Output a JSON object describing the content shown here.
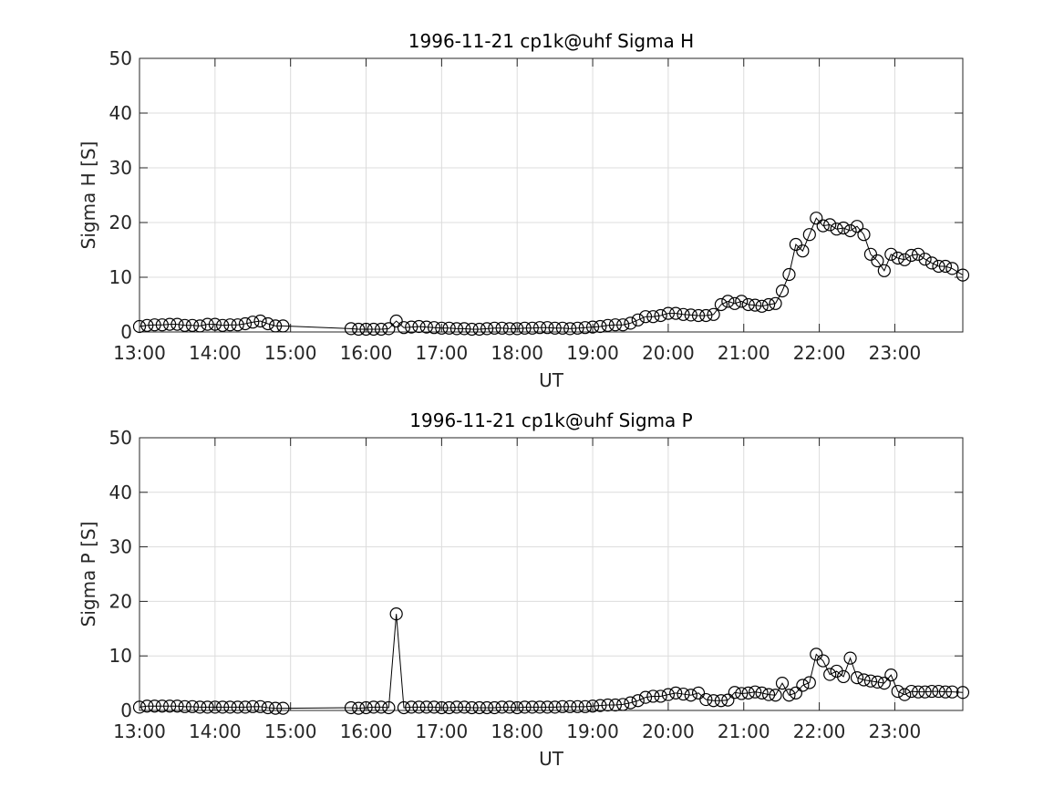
{
  "chart_data": [
    {
      "type": "line",
      "title": "1996-11-21  cp1k@uhf Sigma H",
      "xlabel": "UT",
      "ylabel": "Sigma H [S]",
      "color": "#000000",
      "grid": true,
      "marker": "circle",
      "x": [
        13.0,
        13.1,
        13.2,
        13.3,
        13.4,
        13.5,
        13.6,
        13.7,
        13.8,
        13.9,
        14.0,
        14.1,
        14.2,
        14.3,
        14.4,
        14.5,
        14.6,
        14.7,
        14.8,
        14.9,
        15.8,
        15.9,
        16.0,
        16.1,
        16.2,
        16.3,
        16.4,
        16.5,
        16.6,
        16.7,
        16.8,
        16.9,
        17.0,
        17.1,
        17.2,
        17.3,
        17.4,
        17.5,
        17.6,
        17.7,
        17.8,
        17.9,
        18.0,
        18.1,
        18.2,
        18.3,
        18.4,
        18.5,
        18.6,
        18.7,
        18.8,
        18.9,
        19.0,
        19.1,
        19.2,
        19.3,
        19.4,
        19.5,
        19.6,
        19.7,
        19.8,
        19.9,
        20.0,
        20.1,
        20.2,
        20.3,
        20.4,
        20.5,
        20.6,
        20.7,
        20.79,
        20.88,
        20.97,
        21.06,
        21.15,
        21.24,
        21.33,
        21.42,
        21.51,
        21.6,
        21.69,
        21.78,
        21.87,
        21.96,
        22.05,
        22.14,
        22.23,
        22.32,
        22.41,
        22.5,
        22.59,
        22.68,
        22.77,
        22.86,
        22.95,
        23.04,
        23.13,
        23.22,
        23.31,
        23.4,
        23.49,
        23.58,
        23.67,
        23.76,
        23.9
      ],
      "values": [
        1.0,
        1.2,
        1.3,
        1.3,
        1.4,
        1.4,
        1.2,
        1.2,
        1.1,
        1.4,
        1.4,
        1.2,
        1.3,
        1.3,
        1.5,
        1.8,
        2.0,
        1.5,
        1.1,
        1.1,
        0.6,
        0.5,
        0.5,
        0.5,
        0.5,
        0.6,
        2.0,
        0.8,
        0.9,
        1.0,
        0.9,
        0.8,
        0.7,
        0.7,
        0.6,
        0.6,
        0.5,
        0.5,
        0.6,
        0.7,
        0.7,
        0.6,
        0.6,
        0.7,
        0.7,
        0.8,
        0.8,
        0.7,
        0.7,
        0.6,
        0.7,
        0.8,
        0.9,
        1.0,
        1.2,
        1.3,
        1.3,
        1.6,
        2.2,
        2.8,
        2.8,
        3.0,
        3.4,
        3.4,
        3.2,
        3.1,
        3.0,
        3.0,
        3.2,
        5.0,
        5.6,
        5.2,
        5.6,
        5.0,
        4.9,
        4.7,
        5.0,
        5.2,
        7.5,
        10.5,
        16.0,
        14.8,
        17.8,
        20.8,
        19.4,
        19.6,
        18.8,
        19.0,
        18.5,
        19.3,
        17.8,
        14.2,
        13.0,
        11.2,
        14.2,
        13.5,
        13.2,
        14.0,
        14.2,
        13.3,
        12.6,
        12.0,
        12.0,
        11.6,
        10.4
      ],
      "xlim": [
        13,
        23.9
      ],
      "xticks": [
        {
          "value": 13,
          "label": "13:00"
        },
        {
          "value": 14,
          "label": "14:00"
        },
        {
          "value": 15,
          "label": "15:00"
        },
        {
          "value": 16,
          "label": "16:00"
        },
        {
          "value": 17,
          "label": "17:00"
        },
        {
          "value": 18,
          "label": "18:00"
        },
        {
          "value": 19,
          "label": "19:00"
        },
        {
          "value": 20,
          "label": "20:00"
        },
        {
          "value": 21,
          "label": "21:00"
        },
        {
          "value": 22,
          "label": "22:00"
        },
        {
          "value": 23,
          "label": "23:00"
        }
      ],
      "ylim": [
        0,
        50
      ],
      "yticks": [
        0,
        10,
        20,
        30,
        40,
        50
      ]
    },
    {
      "type": "line",
      "title": "1996-11-21  cp1k@uhf Sigma P",
      "xlabel": "UT",
      "ylabel": "Sigma P [S]",
      "color": "#000000",
      "grid": true,
      "marker": "circle",
      "x": [
        13.0,
        13.1,
        13.2,
        13.3,
        13.4,
        13.5,
        13.6,
        13.7,
        13.8,
        13.9,
        14.0,
        14.1,
        14.2,
        14.3,
        14.4,
        14.5,
        14.6,
        14.7,
        14.8,
        14.9,
        15.8,
        15.9,
        16.0,
        16.1,
        16.2,
        16.3,
        16.4,
        16.5,
        16.6,
        16.7,
        16.8,
        16.9,
        17.0,
        17.1,
        17.2,
        17.3,
        17.4,
        17.5,
        17.6,
        17.7,
        17.8,
        17.9,
        18.0,
        18.1,
        18.2,
        18.3,
        18.4,
        18.5,
        18.6,
        18.7,
        18.8,
        18.9,
        19.0,
        19.1,
        19.2,
        19.3,
        19.4,
        19.5,
        19.6,
        19.7,
        19.8,
        19.9,
        20.0,
        20.1,
        20.2,
        20.3,
        20.4,
        20.5,
        20.6,
        20.7,
        20.79,
        20.88,
        20.97,
        21.06,
        21.15,
        21.24,
        21.33,
        21.42,
        21.51,
        21.6,
        21.69,
        21.78,
        21.87,
        21.96,
        22.05,
        22.14,
        22.23,
        22.32,
        22.41,
        22.5,
        22.59,
        22.68,
        22.77,
        22.86,
        22.95,
        23.04,
        23.13,
        23.22,
        23.31,
        23.4,
        23.49,
        23.58,
        23.67,
        23.76,
        23.9
      ],
      "values": [
        0.6,
        0.8,
        0.8,
        0.8,
        0.8,
        0.8,
        0.7,
        0.7,
        0.6,
        0.6,
        0.6,
        0.6,
        0.6,
        0.6,
        0.6,
        0.7,
        0.7,
        0.5,
        0.4,
        0.4,
        0.5,
        0.4,
        0.5,
        0.6,
        0.6,
        0.5,
        17.7,
        0.5,
        0.6,
        0.6,
        0.6,
        0.6,
        0.5,
        0.5,
        0.6,
        0.6,
        0.5,
        0.5,
        0.5,
        0.5,
        0.6,
        0.6,
        0.5,
        0.6,
        0.6,
        0.6,
        0.6,
        0.6,
        0.7,
        0.7,
        0.7,
        0.7,
        0.8,
        0.9,
        1.0,
        1.0,
        1.1,
        1.4,
        1.8,
        2.4,
        2.6,
        2.6,
        2.9,
        3.2,
        3.0,
        2.8,
        3.2,
        2.0,
        1.8,
        1.8,
        1.9,
        3.3,
        3.1,
        3.2,
        3.4,
        3.2,
        2.9,
        2.8,
        5.0,
        2.8,
        3.2,
        4.6,
        5.1,
        10.3,
        9.1,
        6.6,
        7.2,
        6.2,
        9.6,
        6.0,
        5.6,
        5.4,
        5.2,
        5.0,
        6.5,
        3.5,
        2.9,
        3.5,
        3.4,
        3.4,
        3.5,
        3.5,
        3.4,
        3.4,
        3.3
      ],
      "xlim": [
        13,
        23.9
      ],
      "xticks": [
        {
          "value": 13,
          "label": "13:00"
        },
        {
          "value": 14,
          "label": "14:00"
        },
        {
          "value": 15,
          "label": "15:00"
        },
        {
          "value": 16,
          "label": "16:00"
        },
        {
          "value": 17,
          "label": "17:00"
        },
        {
          "value": 18,
          "label": "18:00"
        },
        {
          "value": 19,
          "label": "19:00"
        },
        {
          "value": 20,
          "label": "20:00"
        },
        {
          "value": 21,
          "label": "21:00"
        },
        {
          "value": 22,
          "label": "22:00"
        },
        {
          "value": 23,
          "label": "23:00"
        }
      ],
      "ylim": [
        0,
        50
      ],
      "yticks": [
        0,
        10,
        20,
        30,
        40,
        50
      ]
    }
  ]
}
